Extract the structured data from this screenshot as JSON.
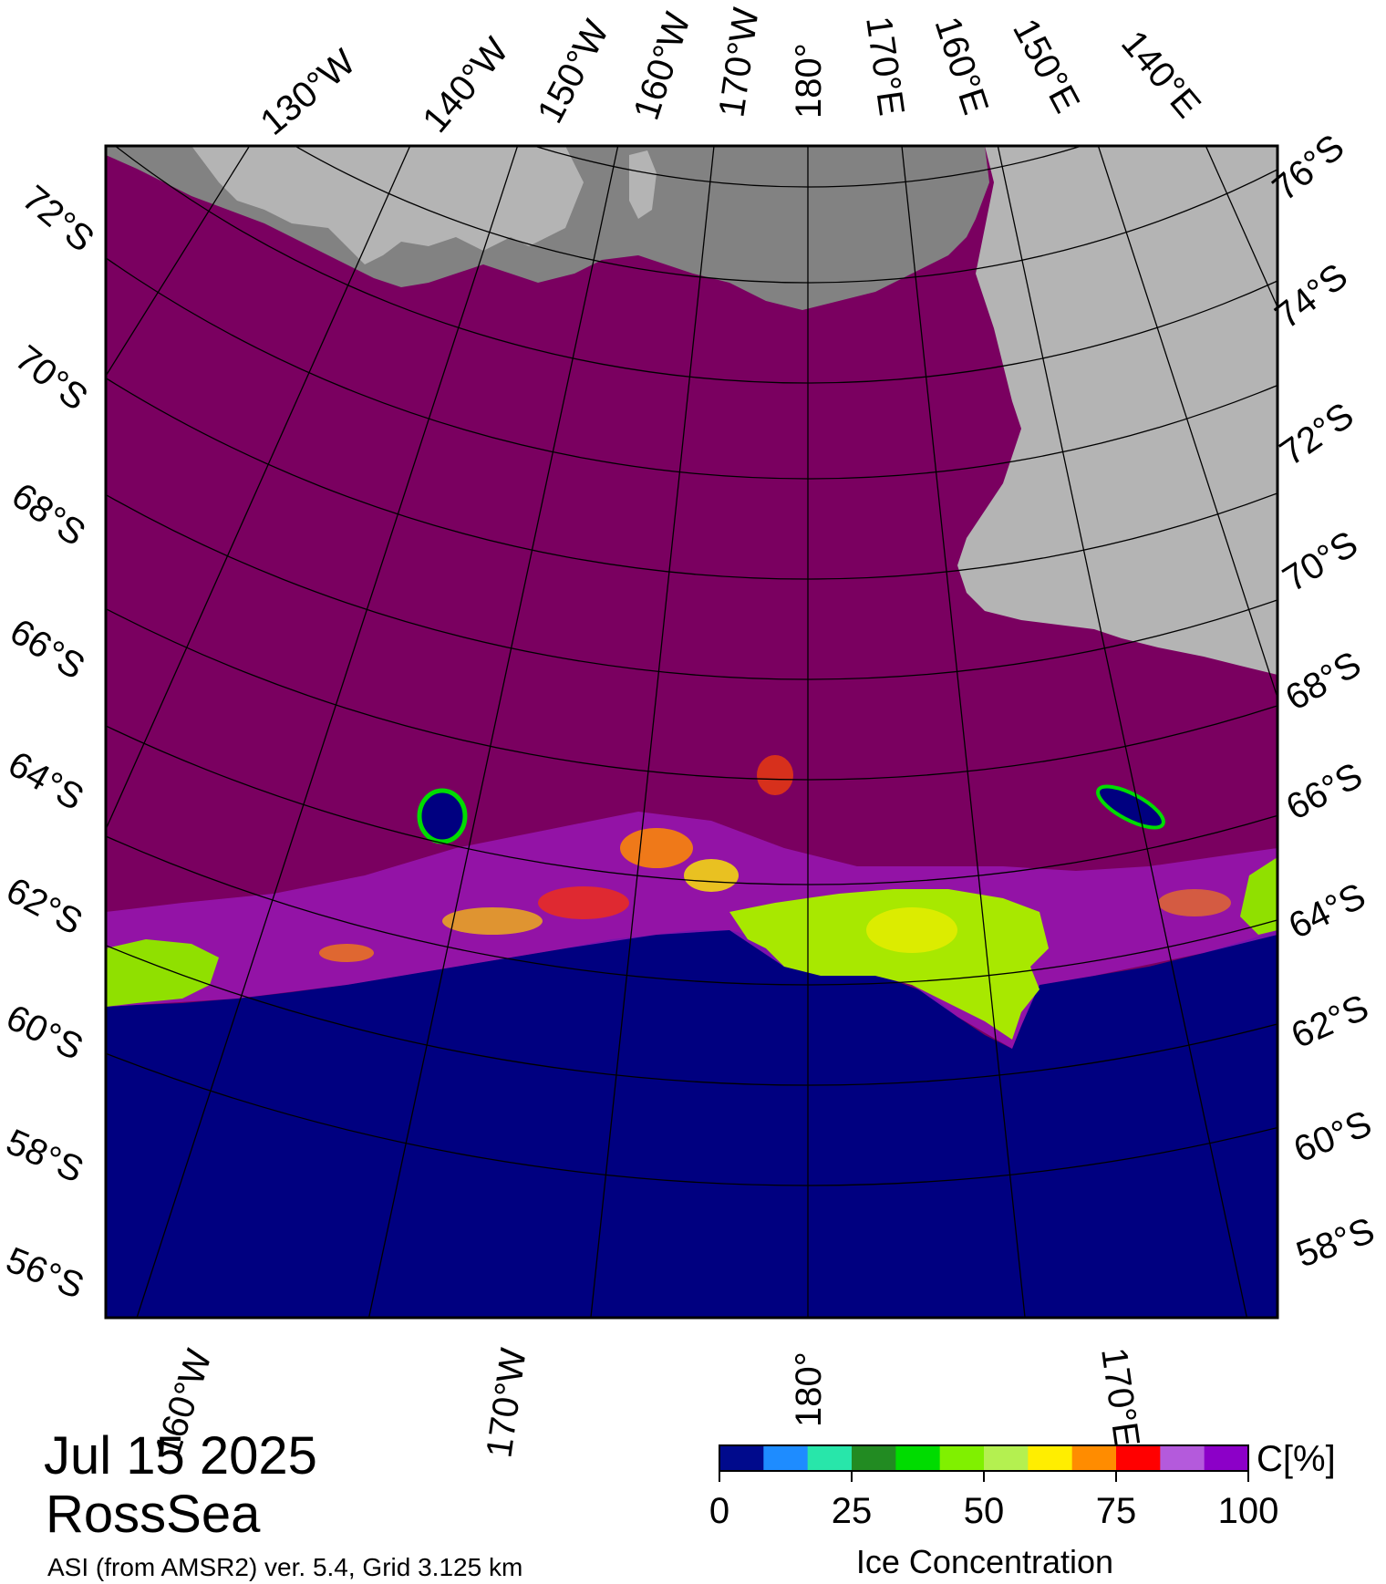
{
  "map": {
    "date": "Jul 15 2025",
    "region": "RossSea",
    "subtitle": "ASI (from AMSR2) ver. 5.4,  Grid 3.125 km",
    "colors": {
      "open_water": "#000080",
      "sea_ice_full": "#7a0060",
      "land_ice": "#b4b4b4",
      "ice_shelf": "#828282",
      "frame": "#000000"
    },
    "meridian_labels_top": [
      "130°W",
      "140°W",
      "150°W",
      "160°W",
      "170°W",
      "180°",
      "170°E",
      "160°E",
      "150°E",
      "140°E"
    ],
    "meridian_labels_bottom": [
      "160°W",
      "170°W",
      "180°",
      "170°E"
    ],
    "parallel_labels_left": [
      "72°S",
      "70°S",
      "68°S",
      "66°S",
      "64°S",
      "62°S",
      "60°S",
      "58°S",
      "56°S"
    ],
    "parallel_labels_right": [
      "76°S",
      "74°S",
      "72°S",
      "70°S",
      "68°S",
      "66°S",
      "64°S",
      "62°S",
      "60°S",
      "58°S"
    ]
  },
  "legend": {
    "unit": "C[%]",
    "title": "Ice Concentration",
    "ticks": [
      "0",
      "25",
      "50",
      "75",
      "100"
    ],
    "color_steps": [
      "#000a8c",
      "#1e8cff",
      "#28e6aa",
      "#228b22",
      "#00dc00",
      "#80f000",
      "#b4f050",
      "#ffee00",
      "#ff8c00",
      "#ff0000",
      "#b45adc",
      "#8c00c8"
    ]
  }
}
